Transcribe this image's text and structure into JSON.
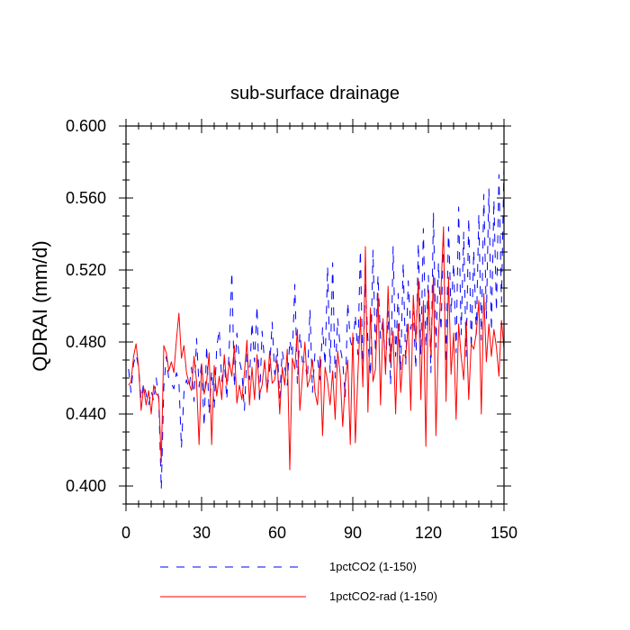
{
  "chart_data": {
    "type": "line",
    "title": "sub-surface drainage",
    "xlabel": "",
    "ylabel": "QDRAI  (mm/d)",
    "xlim": [
      0,
      150
    ],
    "ylim": [
      0.39,
      0.6
    ],
    "x_ticks": [
      0,
      30,
      60,
      90,
      120,
      150
    ],
    "x_tick_labels": [
      "0",
      "30",
      "60",
      "90",
      "120",
      "150"
    ],
    "y_ticks": [
      0.4,
      0.44,
      0.48,
      0.52,
      0.56,
      0.6
    ],
    "y_tick_labels": [
      "0.400",
      "0.440",
      "0.480",
      "0.520",
      "0.560",
      "0.600"
    ],
    "grid": false,
    "legend_position": "bottom",
    "series": [
      {
        "name": "1pctCO2 (1-150)",
        "color": "#0000ff",
        "dash": "dashed",
        "x": [
          1,
          2,
          3,
          4,
          5,
          6,
          7,
          8,
          9,
          10,
          11,
          12,
          13,
          14,
          15,
          16,
          17,
          18,
          19,
          20,
          21,
          22,
          23,
          24,
          25,
          26,
          27,
          28,
          29,
          30,
          31,
          32,
          33,
          34,
          35,
          36,
          37,
          38,
          39,
          40,
          41,
          42,
          43,
          44,
          45,
          46,
          47,
          48,
          49,
          50,
          51,
          52,
          53,
          54,
          55,
          56,
          57,
          58,
          59,
          60,
          61,
          62,
          63,
          64,
          65,
          66,
          67,
          68,
          69,
          70,
          71,
          72,
          73,
          74,
          75,
          76,
          77,
          78,
          79,
          80,
          81,
          82,
          83,
          84,
          85,
          86,
          87,
          88,
          89,
          90,
          91,
          92,
          93,
          94,
          95,
          96,
          97,
          98,
          99,
          100,
          101,
          102,
          103,
          104,
          105,
          106,
          107,
          108,
          109,
          110,
          111,
          112,
          113,
          114,
          115,
          116,
          117,
          118,
          119,
          120,
          121,
          122,
          123,
          124,
          125,
          126,
          127,
          128,
          129,
          130,
          131,
          132,
          133,
          134,
          135,
          136,
          137,
          138,
          139,
          140,
          141,
          142,
          143,
          144,
          145,
          146,
          147,
          148,
          149,
          150
        ],
        "y": [
          0.465,
          0.452,
          0.468,
          0.473,
          0.466,
          0.448,
          0.457,
          0.451,
          0.445,
          0.453,
          0.447,
          0.46,
          0.448,
          0.398,
          0.455,
          0.472,
          0.459,
          0.457,
          0.454,
          0.463,
          0.458,
          0.421,
          0.452,
          0.459,
          0.454,
          0.466,
          0.447,
          0.482,
          0.455,
          0.469,
          0.433,
          0.478,
          0.44,
          0.464,
          0.443,
          0.477,
          0.487,
          0.458,
          0.47,
          0.448,
          0.478,
          0.519,
          0.455,
          0.485,
          0.47,
          0.463,
          0.442,
          0.474,
          0.459,
          0.491,
          0.469,
          0.5,
          0.446,
          0.486,
          0.469,
          0.453,
          0.465,
          0.491,
          0.462,
          0.477,
          0.449,
          0.475,
          0.466,
          0.456,
          0.481,
          0.472,
          0.512,
          0.457,
          0.485,
          0.469,
          0.469,
          0.459,
          0.498,
          0.452,
          0.474,
          0.471,
          0.459,
          0.488,
          0.467,
          0.522,
          0.463,
          0.524,
          0.46,
          0.493,
          0.477,
          0.469,
          0.449,
          0.502,
          0.481,
          0.476,
          0.495,
          0.473,
          0.531,
          0.463,
          0.513,
          0.481,
          0.461,
          0.531,
          0.474,
          0.517,
          0.482,
          0.493,
          0.465,
          0.497,
          0.456,
          0.533,
          0.472,
          0.507,
          0.464,
          0.524,
          0.467,
          0.514,
          0.487,
          0.497,
          0.465,
          0.535,
          0.473,
          0.543,
          0.477,
          0.517,
          0.463,
          0.552,
          0.477,
          0.524,
          0.486,
          0.54,
          0.468,
          0.544,
          0.496,
          0.524,
          0.474,
          0.555,
          0.484,
          0.541,
          0.472,
          0.549,
          0.476,
          0.531,
          0.484,
          0.551,
          0.481,
          0.562,
          0.493,
          0.565,
          0.486,
          0.559,
          0.497,
          0.573,
          0.502,
          0.578
        ]
      },
      {
        "name": "1pctCO2-rad (1-150)",
        "color": "#ff0000",
        "dash": "solid",
        "x": [
          1,
          2,
          3,
          4,
          5,
          6,
          7,
          8,
          9,
          10,
          11,
          12,
          13,
          14,
          15,
          16,
          17,
          18,
          19,
          20,
          21,
          22,
          23,
          24,
          25,
          26,
          27,
          28,
          29,
          30,
          31,
          32,
          33,
          34,
          35,
          36,
          37,
          38,
          39,
          40,
          41,
          42,
          43,
          44,
          45,
          46,
          47,
          48,
          49,
          50,
          51,
          52,
          53,
          54,
          55,
          56,
          57,
          58,
          59,
          60,
          61,
          62,
          63,
          64,
          65,
          66,
          67,
          68,
          69,
          70,
          71,
          72,
          73,
          74,
          75,
          76,
          77,
          78,
          79,
          80,
          81,
          82,
          83,
          84,
          85,
          86,
          87,
          88,
          89,
          90,
          91,
          92,
          93,
          94,
          95,
          96,
          97,
          98,
          99,
          100,
          101,
          102,
          103,
          104,
          105,
          106,
          107,
          108,
          109,
          110,
          111,
          112,
          113,
          114,
          115,
          116,
          117,
          118,
          119,
          120,
          121,
          122,
          123,
          124,
          125,
          126,
          127,
          128,
          129,
          130,
          131,
          132,
          133,
          134,
          135,
          136,
          137,
          138,
          139,
          140,
          141,
          142,
          143,
          144,
          145,
          146,
          147,
          148,
          149,
          150
        ],
        "y": [
          0.456,
          0.458,
          0.472,
          0.479,
          0.466,
          0.442,
          0.455,
          0.445,
          0.453,
          0.44,
          0.456,
          0.451,
          0.45,
          0.413,
          0.478,
          0.474,
          0.464,
          0.469,
          0.463,
          0.481,
          0.496,
          0.471,
          0.478,
          0.463,
          0.457,
          0.453,
          0.472,
          0.458,
          0.423,
          0.468,
          0.451,
          0.458,
          0.474,
          0.423,
          0.467,
          0.45,
          0.461,
          0.448,
          0.473,
          0.456,
          0.469,
          0.461,
          0.478,
          0.446,
          0.456,
          0.448,
          0.463,
          0.481,
          0.445,
          0.466,
          0.448,
          0.473,
          0.451,
          0.456,
          0.47,
          0.452,
          0.475,
          0.457,
          0.459,
          0.47,
          0.44,
          0.466,
          0.456,
          0.476,
          0.409,
          0.471,
          0.465,
          0.487,
          0.442,
          0.461,
          0.48,
          0.455,
          0.46,
          0.47,
          0.452,
          0.445,
          0.472,
          0.428,
          0.466,
          0.458,
          0.445,
          0.464,
          0.437,
          0.475,
          0.462,
          0.433,
          0.458,
          0.47,
          0.423,
          0.485,
          0.424,
          0.461,
          0.494,
          0.455,
          0.533,
          0.441,
          0.499,
          0.458,
          0.465,
          0.507,
          0.445,
          0.493,
          0.462,
          0.511,
          0.468,
          0.486,
          0.44,
          0.49,
          0.452,
          0.473,
          0.472,
          0.49,
          0.442,
          0.506,
          0.48,
          0.515,
          0.448,
          0.503,
          0.422,
          0.509,
          0.473,
          0.517,
          0.428,
          0.483,
          0.509,
          0.544,
          0.447,
          0.516,
          0.462,
          0.485,
          0.437,
          0.49,
          0.472,
          0.459,
          0.492,
          0.448,
          0.479,
          0.476,
          0.485,
          0.503,
          0.44,
          0.507,
          0.469,
          0.49,
          0.472,
          0.487,
          0.477,
          0.461,
          0.492,
          0.476
        ]
      }
    ]
  }
}
